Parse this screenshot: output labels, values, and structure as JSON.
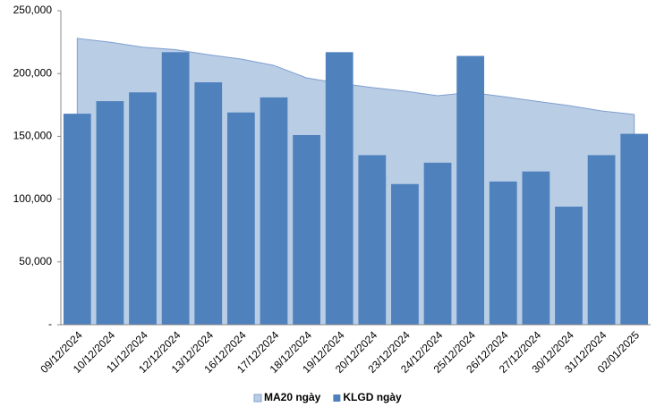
{
  "chart_data": {
    "type": "bar",
    "categories": [
      "09/12/2024",
      "10/12/2024",
      "11/12/2024",
      "12/12/2024",
      "13/12/2024",
      "16/12/2024",
      "17/12/2024",
      "18/12/2024",
      "19/12/2024",
      "20/12/2024",
      "23/12/2024",
      "24/12/2024",
      "25/12/2024",
      "26/12/2024",
      "27/12/2024",
      "30/12/2024",
      "31/12/2024",
      "02/01/2025"
    ],
    "series": [
      {
        "name": "MA20 ngày",
        "type": "area",
        "color": "#b9cde5",
        "values": [
          228000,
          225000,
          221000,
          219000,
          215000,
          211500,
          206500,
          196500,
          192300,
          188800,
          186000,
          182300,
          185000,
          181600,
          178000,
          174500,
          170200,
          167400
        ]
      },
      {
        "name": "KLGD ngày",
        "type": "bar",
        "color": "#4f81bd",
        "values": [
          168000,
          178000,
          185000,
          217000,
          193000,
          169000,
          181000,
          151000,
          217000,
          135000,
          112000,
          129000,
          214000,
          114000,
          122000,
          94000,
          135000,
          152000
        ]
      }
    ],
    "ylim": [
      0,
      250000
    ],
    "yticks": [
      {
        "value": 0,
        "label": "-"
      },
      {
        "value": 50000,
        "label": "50,000"
      },
      {
        "value": 100000,
        "label": "100,000"
      },
      {
        "value": 150000,
        "label": "150,000"
      },
      {
        "value": 200000,
        "label": "200,000"
      },
      {
        "value": 250000,
        "label": "250,000"
      }
    ],
    "legend": "bottom"
  }
}
